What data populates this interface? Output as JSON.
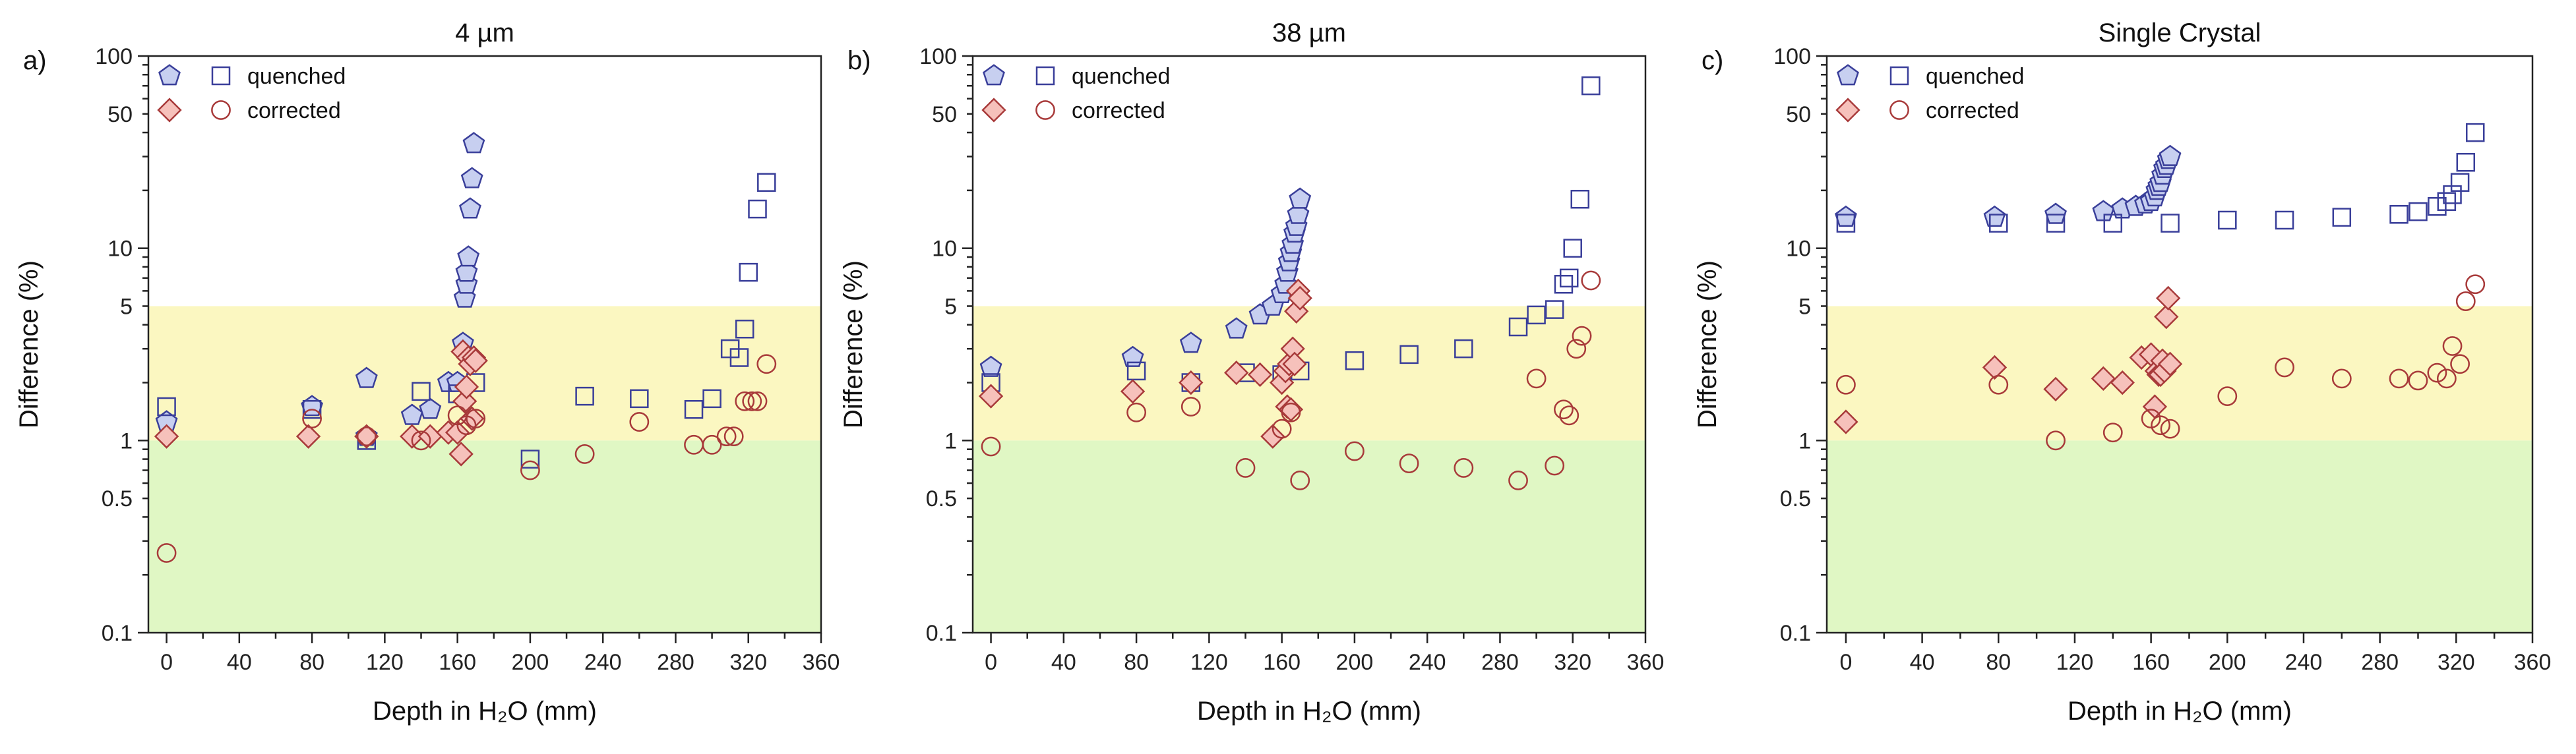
{
  "figure": {
    "colors": {
      "yellow_band": "#fbf7c1",
      "green_band": "#e0f7c4",
      "quenched_stroke": "#3a3f9a",
      "quenched_fill": "#c7cff0",
      "corrected_stroke": "#a83a3a",
      "corrected_fill": "#f6c1bb"
    }
  },
  "chart_data": [
    {
      "type": "scatter",
      "letter": "a)",
      "title": "4 µm",
      "xlabel": "Depth in H₂O (mm)",
      "ylabel": "Difference (%)",
      "xlim": [
        -10,
        360
      ],
      "ylim": [
        0.1,
        100
      ],
      "yscale": "log",
      "x_ticks": [
        0,
        40,
        80,
        120,
        160,
        200,
        240,
        280,
        320,
        360
      ],
      "y_ticks": [
        0.1,
        0.5,
        1,
        5,
        10,
        50,
        100
      ],
      "y_tick_labels": [
        "0.1",
        "0.5",
        "1",
        "5",
        "10",
        "50",
        "100"
      ],
      "bands": [
        {
          "name": "green",
          "from": 0.1,
          "to": 1
        },
        {
          "name": "yellow",
          "from": 1,
          "to": 5
        }
      ],
      "legend": {
        "position": "top-left",
        "quenched_label": "quenched",
        "corrected_label": "corrected"
      },
      "series": [
        {
          "name": "quenched-pentagon",
          "marker": "pentagon",
          "points": [
            [
              0,
              1.25
            ],
            [
              80,
              1.5
            ],
            [
              110,
              2.1
            ],
            [
              110,
              1.05
            ],
            [
              135,
              1.35
            ],
            [
              145,
              1.45
            ],
            [
              155,
              2.0
            ],
            [
              160,
              2.0
            ],
            [
              163,
              3.2
            ],
            [
              164,
              5.5
            ],
            [
              165,
              6.5
            ],
            [
              165,
              7.5
            ],
            [
              166,
              9.0
            ],
            [
              167,
              16
            ],
            [
              168,
              23
            ],
            [
              169,
              35
            ]
          ]
        },
        {
          "name": "quenched-square",
          "marker": "square",
          "points": [
            [
              0,
              1.5
            ],
            [
              80,
              1.45
            ],
            [
              110,
              1.0
            ],
            [
              140,
              1.8
            ],
            [
              160,
              1.75
            ],
            [
              170,
              2.0
            ],
            [
              200,
              0.8
            ],
            [
              230,
              1.7
            ],
            [
              260,
              1.65
            ],
            [
              290,
              1.45
            ],
            [
              300,
              1.65
            ],
            [
              310,
              3.0
            ],
            [
              315,
              2.7
            ],
            [
              318,
              3.8
            ],
            [
              320,
              7.5
            ],
            [
              325,
              16
            ],
            [
              330,
              22
            ]
          ]
        },
        {
          "name": "corrected-diamond",
          "marker": "diamond",
          "points": [
            [
              0,
              1.05
            ],
            [
              78,
              1.05
            ],
            [
              110,
              1.05
            ],
            [
              135,
              1.05
            ],
            [
              145,
              1.05
            ],
            [
              155,
              1.1
            ],
            [
              160,
              1.1
            ],
            [
              162,
              0.85
            ],
            [
              163,
              2.9
            ],
            [
              164,
              1.6
            ],
            [
              165,
              1.9
            ],
            [
              166,
              2.7
            ],
            [
              167,
              2.5
            ],
            [
              168,
              1.3
            ],
            [
              169,
              2.7
            ],
            [
              170,
              2.6
            ]
          ]
        },
        {
          "name": "corrected-circle",
          "marker": "circle",
          "points": [
            [
              0,
              0.26
            ],
            [
              80,
              1.3
            ],
            [
              110,
              1.05
            ],
            [
              140,
              1.0
            ],
            [
              160,
              1.35
            ],
            [
              165,
              1.2
            ],
            [
              170,
              1.3
            ],
            [
              200,
              0.7
            ],
            [
              230,
              0.85
            ],
            [
              260,
              1.25
            ],
            [
              290,
              0.95
            ],
            [
              300,
              0.95
            ],
            [
              308,
              1.05
            ],
            [
              312,
              1.05
            ],
            [
              318,
              1.6
            ],
            [
              322,
              1.6
            ],
            [
              325,
              1.6
            ],
            [
              330,
              2.5
            ]
          ]
        }
      ]
    },
    {
      "type": "scatter",
      "letter": "b)",
      "title": "38 µm",
      "xlabel": "Depth in H₂O (mm)",
      "ylabel": "Difference (%)",
      "xlim": [
        -10,
        360
      ],
      "ylim": [
        0.1,
        100
      ],
      "yscale": "log",
      "x_ticks": [
        0,
        40,
        80,
        120,
        160,
        200,
        240,
        280,
        320,
        360
      ],
      "y_ticks": [
        0.1,
        0.5,
        1,
        5,
        10,
        50,
        100
      ],
      "y_tick_labels": [
        "0.1",
        "0.5",
        "1",
        "5",
        "10",
        "50",
        "100"
      ],
      "bands": [
        {
          "name": "green",
          "from": 0.1,
          "to": 1
        },
        {
          "name": "yellow",
          "from": 1,
          "to": 5
        }
      ],
      "legend": {
        "position": "top-left",
        "quenched_label": "quenched",
        "corrected_label": "corrected"
      },
      "series": [
        {
          "name": "quenched-pentagon",
          "marker": "pentagon",
          "points": [
            [
              0,
              2.4
            ],
            [
              78,
              2.7
            ],
            [
              110,
              3.2
            ],
            [
              135,
              3.8
            ],
            [
              148,
              4.5
            ],
            [
              155,
              5.0
            ],
            [
              160,
              5.8
            ],
            [
              162,
              6.5
            ],
            [
              163,
              7.5
            ],
            [
              164,
              8.5
            ],
            [
              165,
              9.5
            ],
            [
              166,
              10.5
            ],
            [
              167,
              12
            ],
            [
              168,
              13
            ],
            [
              169,
              15
            ],
            [
              170,
              18
            ]
          ]
        },
        {
          "name": "quenched-square",
          "marker": "square",
          "points": [
            [
              0,
              2.0
            ],
            [
              80,
              2.3
            ],
            [
              110,
              2.0
            ],
            [
              140,
              2.25
            ],
            [
              160,
              2.2
            ],
            [
              170,
              2.3
            ],
            [
              200,
              2.6
            ],
            [
              230,
              2.8
            ],
            [
              260,
              3.0
            ],
            [
              290,
              3.9
            ],
            [
              300,
              4.5
            ],
            [
              310,
              4.8
            ],
            [
              315,
              6.5
            ],
            [
              318,
              7.0
            ],
            [
              320,
              10
            ],
            [
              324,
              18
            ],
            [
              330,
              70
            ]
          ]
        },
        {
          "name": "corrected-diamond",
          "marker": "diamond",
          "points": [
            [
              0,
              1.7
            ],
            [
              78,
              1.8
            ],
            [
              110,
              2.0
            ],
            [
              135,
              2.25
            ],
            [
              148,
              2.2
            ],
            [
              155,
              1.05
            ],
            [
              160,
              2.0
            ],
            [
              162,
              2.3
            ],
            [
              163,
              1.5
            ],
            [
              164,
              2.5
            ],
            [
              165,
              1.45
            ],
            [
              166,
              3.0
            ],
            [
              167,
              2.5
            ],
            [
              168,
              4.7
            ],
            [
              169,
              6.0
            ],
            [
              170,
              5.5
            ]
          ]
        },
        {
          "name": "corrected-circle",
          "marker": "circle",
          "points": [
            [
              0,
              0.93
            ],
            [
              80,
              1.4
            ],
            [
              110,
              1.5
            ],
            [
              140,
              0.72
            ],
            [
              160,
              1.15
            ],
            [
              165,
              1.4
            ],
            [
              170,
              0.62
            ],
            [
              200,
              0.88
            ],
            [
              230,
              0.76
            ],
            [
              260,
              0.72
            ],
            [
              290,
              0.62
            ],
            [
              300,
              2.1
            ],
            [
              310,
              0.74
            ],
            [
              315,
              1.45
            ],
            [
              318,
              1.35
            ],
            [
              322,
              3.0
            ],
            [
              325,
              3.5
            ],
            [
              330,
              6.8
            ]
          ]
        }
      ]
    },
    {
      "type": "scatter",
      "letter": "c)",
      "title": "Single Crystal",
      "xlabel": "Depth in H₂O (mm)",
      "ylabel": "Difference (%)",
      "xlim": [
        -10,
        360
      ],
      "ylim": [
        0.1,
        100
      ],
      "yscale": "log",
      "x_ticks": [
        0,
        40,
        80,
        120,
        160,
        200,
        240,
        280,
        320,
        360
      ],
      "y_ticks": [
        0.1,
        0.5,
        1,
        5,
        10,
        50,
        100
      ],
      "y_tick_labels": [
        "0.1",
        "0.5",
        "1",
        "5",
        "10",
        "50",
        "100"
      ],
      "bands": [
        {
          "name": "green",
          "from": 0.1,
          "to": 1
        },
        {
          "name": "yellow",
          "from": 1,
          "to": 5
        }
      ],
      "legend": {
        "position": "top-left",
        "quenched_label": "quenched",
        "corrected_label": "corrected"
      },
      "series": [
        {
          "name": "quenched-pentagon",
          "marker": "pentagon",
          "points": [
            [
              0,
              14.5
            ],
            [
              78,
              14.5
            ],
            [
              110,
              15
            ],
            [
              135,
              15.5
            ],
            [
              145,
              16
            ],
            [
              152,
              16.5
            ],
            [
              157,
              17
            ],
            [
              160,
              17.5
            ],
            [
              162,
              18.5
            ],
            [
              163,
              20
            ],
            [
              164,
              21
            ],
            [
              165,
              22
            ],
            [
              166,
              24
            ],
            [
              167,
              26
            ],
            [
              168,
              27
            ],
            [
              169,
              29
            ],
            [
              170,
              30
            ]
          ]
        },
        {
          "name": "quenched-square",
          "marker": "square",
          "points": [
            [
              0,
              13.5
            ],
            [
              80,
              13.5
            ],
            [
              110,
              13.5
            ],
            [
              140,
              13.5
            ],
            [
              170,
              13.5
            ],
            [
              200,
              14
            ],
            [
              230,
              14
            ],
            [
              260,
              14.5
            ],
            [
              290,
              15
            ],
            [
              300,
              15.5
            ],
            [
              310,
              16.5
            ],
            [
              315,
              17.5
            ],
            [
              318,
              19
            ],
            [
              322,
              22
            ],
            [
              325,
              28
            ],
            [
              330,
              40
            ]
          ]
        },
        {
          "name": "corrected-diamond",
          "marker": "diamond",
          "points": [
            [
              0,
              1.25
            ],
            [
              78,
              2.4
            ],
            [
              110,
              1.85
            ],
            [
              135,
              2.1
            ],
            [
              145,
              2.0
            ],
            [
              155,
              2.7
            ],
            [
              160,
              2.8
            ],
            [
              162,
              1.5
            ],
            [
              163,
              2.3
            ],
            [
              164,
              2.2
            ],
            [
              165,
              2.2
            ],
            [
              166,
              2.6
            ],
            [
              167,
              2.3
            ],
            [
              168,
              4.4
            ],
            [
              169,
              5.5
            ],
            [
              170,
              2.5
            ]
          ]
        },
        {
          "name": "corrected-circle",
          "marker": "circle",
          "points": [
            [
              0,
              1.95
            ],
            [
              80,
              1.95
            ],
            [
              110,
              1.0
            ],
            [
              140,
              1.1
            ],
            [
              160,
              1.3
            ],
            [
              165,
              1.2
            ],
            [
              170,
              1.15
            ],
            [
              200,
              1.7
            ],
            [
              230,
              2.4
            ],
            [
              260,
              2.1
            ],
            [
              290,
              2.1
            ],
            [
              300,
              2.05
            ],
            [
              310,
              2.25
            ],
            [
              315,
              2.1
            ],
            [
              318,
              3.1
            ],
            [
              322,
              2.5
            ],
            [
              325,
              5.3
            ],
            [
              330,
              6.5
            ]
          ]
        }
      ]
    }
  ]
}
